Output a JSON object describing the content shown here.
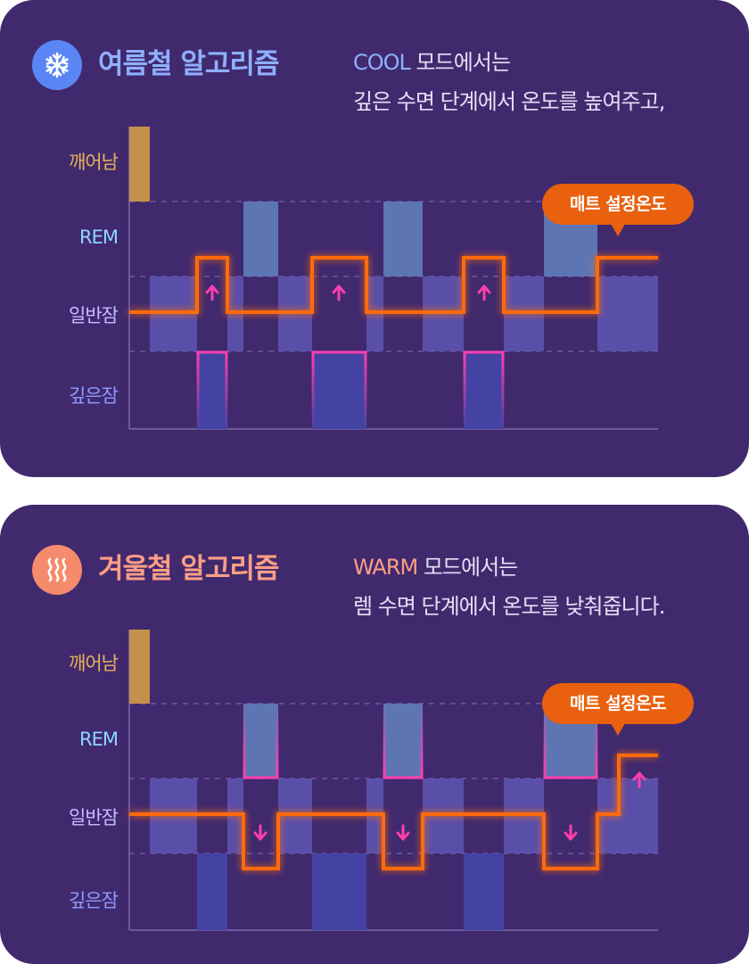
{
  "stage_labels": {
    "awake": "깨어남",
    "rem": "REM",
    "light": "일반잠",
    "deep": "깊은잠"
  },
  "summer": {
    "icon": "snowflake-icon",
    "title": "여름철 알고리즘",
    "mode": "COOL",
    "desc_line1_suffix": " 모드에서는",
    "desc_line2": "깊은 수면 단계에서 온도를 높여주고,",
    "callout": "매트 설정온도",
    "accent": "#8fb0ff"
  },
  "winter": {
    "icon": "heat-waves-icon",
    "title": "겨울철 알고리즘",
    "mode": "WARM",
    "desc_line1_suffix": " 모드에서는",
    "desc_line2": "렘 수면 단계에서 온도를 낮춰줍니다.",
    "callout": "매트 설정온도",
    "accent": "#ff9f85"
  },
  "colors": {
    "card_bg": "#41296e",
    "temperature_line": "#ff6a10",
    "highlight": "#ff3fae",
    "awake_bar": "#c4914a",
    "rem_bar": "#5e75b3",
    "light_bar": "#5a4fa8",
    "deep_bar": "#4443a3"
  }
}
